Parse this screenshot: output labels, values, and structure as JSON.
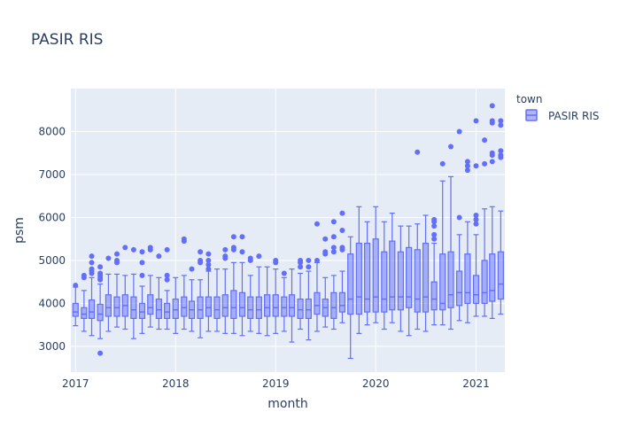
{
  "chart_data": {
    "type": "box",
    "title": "PASIR RIS",
    "xlabel": "month",
    "ylabel": "psm",
    "x_ticks": [
      "2017",
      "2018",
      "2019",
      "2020",
      "2021"
    ],
    "y_ticks": [
      3000,
      4000,
      5000,
      6000,
      7000,
      8000
    ],
    "ylim": [
      2400,
      9000
    ],
    "xlim": [
      "2016-12-15",
      "2021-04-16"
    ],
    "grid": true,
    "legend": {
      "title": "town",
      "placement": "top-right"
    },
    "colors": {
      "box": "#636efa",
      "fill": "rgba(99,110,250,0.5)",
      "plot_bg": "#e5ecf6",
      "grid": "#ffffff",
      "text": "#2a3f5f"
    },
    "series": [
      {
        "name": "PASIR RIS",
        "boxes": [
          {
            "month": "2017-01",
            "min": 3480,
            "q1": 3700,
            "median": 3800,
            "q3": 4000,
            "max": 4380,
            "outliers": [
              4420
            ]
          },
          {
            "month": "2017-02",
            "min": 3350,
            "q1": 3650,
            "median": 3750,
            "q3": 3900,
            "max": 4300,
            "outliers": [
              4600,
              4650
            ]
          },
          {
            "month": "2017-03",
            "min": 3250,
            "q1": 3650,
            "median": 3800,
            "q3": 4080,
            "max": 4600,
            "outliers": [
              4700,
              4750,
              4800,
              4950,
              5100
            ]
          },
          {
            "month": "2017-04",
            "min": 3180,
            "q1": 3600,
            "median": 3750,
            "q3": 3980,
            "max": 4450,
            "outliers": [
              2840,
              4550,
              4600,
              4650,
              4700,
              4850
            ]
          },
          {
            "month": "2017-05",
            "min": 3350,
            "q1": 3700,
            "median": 3900,
            "q3": 4200,
            "max": 4680,
            "outliers": [
              5050
            ]
          },
          {
            "month": "2017-06",
            "min": 3450,
            "q1": 3700,
            "median": 3900,
            "q3": 4150,
            "max": 4680,
            "outliers": [
              4950,
              5000,
              5150
            ]
          },
          {
            "month": "2017-07",
            "min": 3400,
            "q1": 3700,
            "median": 3950,
            "q3": 4200,
            "max": 4650,
            "outliers": [
              5300
            ]
          },
          {
            "month": "2017-08",
            "min": 3180,
            "q1": 3650,
            "median": 3850,
            "q3": 4150,
            "max": 4680,
            "outliers": [
              5250
            ]
          },
          {
            "month": "2017-09",
            "min": 3300,
            "q1": 3650,
            "median": 3800,
            "q3": 4000,
            "max": 4400,
            "outliers": [
              4650,
              4950,
              5200
            ]
          },
          {
            "month": "2017-10",
            "min": 3450,
            "q1": 3750,
            "median": 3900,
            "q3": 4200,
            "max": 4650,
            "outliers": [
              5250,
              5300
            ]
          },
          {
            "month": "2017-11",
            "min": 3400,
            "q1": 3650,
            "median": 3850,
            "q3": 4100,
            "max": 4600,
            "outliers": [
              5100
            ]
          },
          {
            "month": "2017-12",
            "min": 3400,
            "q1": 3650,
            "median": 3800,
            "q3": 4000,
            "max": 4300,
            "outliers": [
              4550,
              4650,
              5250
            ]
          },
          {
            "month": "2018-01",
            "min": 3300,
            "q1": 3650,
            "median": 3850,
            "q3": 4100,
            "max": 4600,
            "outliers": []
          },
          {
            "month": "2018-02",
            "min": 3400,
            "q1": 3700,
            "median": 3900,
            "q3": 4150,
            "max": 4650,
            "outliers": [
              5450,
              5500
            ]
          },
          {
            "month": "2018-03",
            "min": 3350,
            "q1": 3650,
            "median": 3850,
            "q3": 4050,
            "max": 4550,
            "outliers": [
              4800
            ]
          },
          {
            "month": "2018-04",
            "min": 3200,
            "q1": 3650,
            "median": 3850,
            "q3": 4150,
            "max": 4550,
            "outliers": [
              4950,
              5000,
              5200
            ]
          },
          {
            "month": "2018-05",
            "min": 3350,
            "q1": 3700,
            "median": 3900,
            "q3": 4150,
            "max": 4750,
            "outliers": [
              4800,
              4900,
              5000,
              5150
            ]
          },
          {
            "month": "2018-06",
            "min": 3350,
            "q1": 3650,
            "median": 3850,
            "q3": 4150,
            "max": 4800,
            "outliers": []
          },
          {
            "month": "2018-07",
            "min": 3300,
            "q1": 3700,
            "median": 3900,
            "q3": 4200,
            "max": 4800,
            "outliers": [
              5050,
              5100,
              5250
            ]
          },
          {
            "month": "2018-08",
            "min": 3300,
            "q1": 3650,
            "median": 3900,
            "q3": 4300,
            "max": 4950,
            "outliers": [
              5250,
              5300,
              5550
            ]
          },
          {
            "month": "2018-09",
            "min": 3250,
            "q1": 3700,
            "median": 3900,
            "q3": 4250,
            "max": 4950,
            "outliers": [
              5200,
              5550
            ]
          },
          {
            "month": "2018-10",
            "min": 3350,
            "q1": 3650,
            "median": 3850,
            "q3": 4150,
            "max": 4650,
            "outliers": [
              5000,
              5050
            ]
          },
          {
            "month": "2018-11",
            "min": 3300,
            "q1": 3650,
            "median": 3850,
            "q3": 4150,
            "max": 4850,
            "outliers": [
              5100
            ]
          },
          {
            "month": "2018-12",
            "min": 3250,
            "q1": 3700,
            "median": 3900,
            "q3": 4200,
            "max": 4850,
            "outliers": []
          },
          {
            "month": "2019-01",
            "min": 3300,
            "q1": 3700,
            "median": 3900,
            "q3": 4200,
            "max": 4800,
            "outliers": [
              4950,
              5000
            ]
          },
          {
            "month": "2019-02",
            "min": 3350,
            "q1": 3700,
            "median": 3900,
            "q3": 4150,
            "max": 4600,
            "outliers": [
              4700
            ]
          },
          {
            "month": "2019-03",
            "min": 3100,
            "q1": 3700,
            "median": 3900,
            "q3": 4200,
            "max": 4800,
            "outliers": []
          },
          {
            "month": "2019-04",
            "min": 3400,
            "q1": 3650,
            "median": 3850,
            "q3": 4100,
            "max": 4700,
            "outliers": [
              4850,
              4950,
              5000
            ]
          },
          {
            "month": "2019-05",
            "min": 3150,
            "q1": 3650,
            "median": 3850,
            "q3": 4100,
            "max": 4750,
            "outliers": [
              4850,
              5000
            ]
          },
          {
            "month": "2019-06",
            "min": 3350,
            "q1": 3750,
            "median": 3950,
            "q3": 4250,
            "max": 4950,
            "outliers": [
              5000,
              5850
            ]
          },
          {
            "month": "2019-07",
            "min": 3450,
            "q1": 3700,
            "median": 3900,
            "q3": 4100,
            "max": 4600,
            "outliers": [
              5150,
              5200,
              5500
            ]
          },
          {
            "month": "2019-08",
            "min": 3400,
            "q1": 3650,
            "median": 3900,
            "q3": 4250,
            "max": 4650,
            "outliers": [
              5200,
              5300,
              5550,
              5900
            ]
          },
          {
            "month": "2019-09",
            "min": 3550,
            "q1": 3800,
            "median": 3950,
            "q3": 4250,
            "max": 4750,
            "outliers": [
              5250,
              5300,
              5700,
              6100
            ]
          },
          {
            "month": "2019-10",
            "min": 2720,
            "q1": 3750,
            "median": 4100,
            "q3": 5150,
            "max": 5550,
            "outliers": []
          },
          {
            "month": "2019-11",
            "min": 3300,
            "q1": 3750,
            "median": 4150,
            "q3": 5400,
            "max": 6250,
            "outliers": []
          },
          {
            "month": "2019-12",
            "min": 3500,
            "q1": 3800,
            "median": 4100,
            "q3": 5400,
            "max": 5900,
            "outliers": []
          },
          {
            "month": "2020-01",
            "min": 3550,
            "q1": 3800,
            "median": 4150,
            "q3": 5500,
            "max": 6250,
            "outliers": []
          },
          {
            "month": "2020-02",
            "min": 3400,
            "q1": 3800,
            "median": 4100,
            "q3": 5200,
            "max": 5900,
            "outliers": []
          },
          {
            "month": "2020-03",
            "min": 3550,
            "q1": 3850,
            "median": 4150,
            "q3": 5450,
            "max": 6100,
            "outliers": []
          },
          {
            "month": "2020-04",
            "min": 3350,
            "q1": 3850,
            "median": 4150,
            "q3": 5200,
            "max": 5800,
            "outliers": []
          },
          {
            "month": "2020-05",
            "min": 3250,
            "q1": 3900,
            "median": 4150,
            "q3": 5300,
            "max": 5800,
            "outliers": []
          },
          {
            "month": "2020-06",
            "min": 3400,
            "q1": 3800,
            "median": 4100,
            "q3": 5250,
            "max": 5850,
            "outliers": [
              7520
            ]
          },
          {
            "month": "2020-07",
            "min": 3350,
            "q1": 3800,
            "median": 4150,
            "q3": 5400,
            "max": 6050,
            "outliers": []
          },
          {
            "month": "2020-08",
            "min": 3500,
            "q1": 3850,
            "median": 4100,
            "q3": 4500,
            "max": 5400,
            "outliers": [
              5500,
              5600,
              5800,
              5900,
              5950
            ]
          },
          {
            "month": "2020-09",
            "min": 3500,
            "q1": 3850,
            "median": 4000,
            "q3": 5150,
            "max": 6850,
            "outliers": [
              7250
            ]
          },
          {
            "month": "2020-10",
            "min": 3400,
            "q1": 3900,
            "median": 4200,
            "q3": 5200,
            "max": 6950,
            "outliers": [
              7650
            ]
          },
          {
            "month": "2020-11",
            "min": 3600,
            "q1": 3950,
            "median": 4250,
            "q3": 4750,
            "max": 5600,
            "outliers": [
              6000,
              8000
            ]
          },
          {
            "month": "2020-12",
            "min": 3550,
            "q1": 4000,
            "median": 4250,
            "q3": 5150,
            "max": 5900,
            "outliers": [
              7100,
              7200,
              7300
            ]
          },
          {
            "month": "2021-01",
            "min": 3700,
            "q1": 4000,
            "median": 4200,
            "q3": 4650,
            "max": 5600,
            "outliers": [
              5850,
              5950,
              6050,
              7200,
              8250
            ]
          },
          {
            "month": "2021-02",
            "min": 3700,
            "q1": 4000,
            "median": 4250,
            "q3": 5000,
            "max": 6200,
            "outliers": [
              7250,
              7800
            ]
          },
          {
            "month": "2021-03",
            "min": 3650,
            "q1": 4050,
            "median": 4300,
            "q3": 5150,
            "max": 6250,
            "outliers": [
              7300,
              7450,
              7500,
              8200,
              8250,
              8600
            ]
          },
          {
            "month": "2021-04",
            "min": 3750,
            "q1": 4100,
            "median": 4450,
            "q3": 5200,
            "max": 6150,
            "outliers": [
              7400,
              7450,
              7550,
              8150,
              8250
            ]
          }
        ]
      }
    ]
  }
}
